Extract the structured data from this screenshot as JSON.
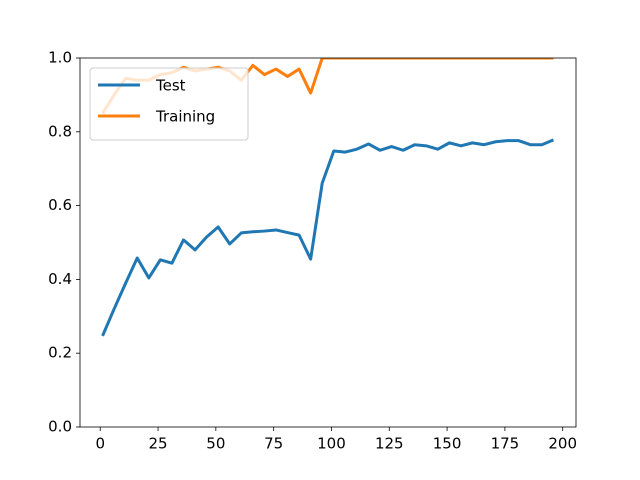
{
  "chart_data": {
    "type": "line",
    "x": [
      1,
      6,
      11,
      16,
      21,
      26,
      31,
      36,
      41,
      46,
      51,
      56,
      61,
      66,
      71,
      76,
      81,
      86,
      91,
      96,
      101,
      106,
      111,
      116,
      121,
      126,
      131,
      136,
      141,
      146,
      151,
      156,
      161,
      166,
      171,
      176,
      181,
      186,
      191,
      196
    ],
    "series": [
      {
        "name": "Test",
        "color": "#1f77b4",
        "values": [
          0.247,
          0.32,
          0.39,
          0.458,
          0.404,
          0.453,
          0.444,
          0.507,
          0.48,
          0.515,
          0.542,
          0.496,
          0.526,
          0.529,
          0.531,
          0.534,
          0.527,
          0.52,
          0.455,
          0.661,
          0.748,
          0.745,
          0.753,
          0.767,
          0.75,
          0.76,
          0.75,
          0.765,
          0.762,
          0.753,
          0.77,
          0.762,
          0.77,
          0.765,
          0.773,
          0.776,
          0.776,
          0.765,
          0.765,
          0.778
        ]
      },
      {
        "name": "Training",
        "color": "#ff7f0e",
        "values": [
          0.85,
          0.9,
          0.945,
          0.94,
          0.94,
          0.955,
          0.96,
          0.975,
          0.965,
          0.97,
          0.975,
          0.965,
          0.94,
          0.98,
          0.955,
          0.97,
          0.95,
          0.97,
          0.905,
          1.0,
          1.0,
          1.0,
          1.0,
          1.0,
          1.0,
          1.0,
          1.0,
          1.0,
          1.0,
          1.0,
          1.0,
          1.0,
          1.0,
          1.0,
          1.0,
          1.0,
          1.0,
          1.0,
          1.0,
          1.0
        ]
      }
    ],
    "xlim": [
      -8.75,
      205.75
    ],
    "xticks": [
      0,
      25,
      50,
      75,
      100,
      125,
      150,
      175,
      200
    ],
    "ylim": [
      0,
      1
    ],
    "yticks": [
      {
        "value": 0,
        "label": "0.0"
      },
      {
        "value": 0.2,
        "label": "0.2"
      },
      {
        "value": 0.4,
        "label": "0.4"
      },
      {
        "value": 0.6,
        "label": "0.6"
      },
      {
        "value": 0.8,
        "label": "0.8"
      },
      {
        "value": 1,
        "label": "1.0"
      }
    ],
    "legend": "upper left"
  }
}
